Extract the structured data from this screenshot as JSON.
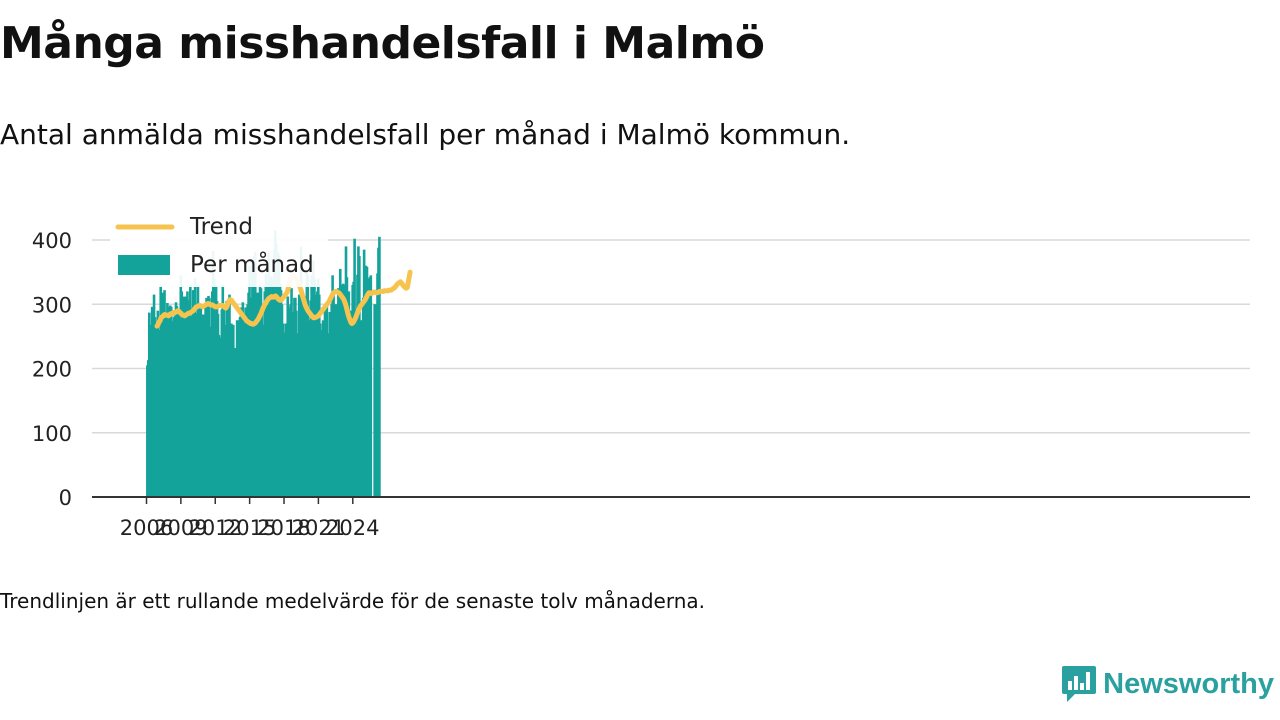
{
  "title": "Många misshandelsfall i Malmö",
  "subtitle": "Antal anmälda misshandelsfall per månad i Malmö kommun.",
  "footnote": "Trendlinjen är ett rullande medelvärde för de senaste tolv månaderna.",
  "brand": {
    "name": "Newsworthy",
    "icon": "newsworthy-logo-icon"
  },
  "colors": {
    "bar": "#14a39a",
    "trend": "#f7c34f",
    "grid": "#d9d9d9",
    "axis": "#333333",
    "brand": "#2aa0a0"
  },
  "chart_data": {
    "type": "bar",
    "x_unit": "month",
    "x_start": "2006-01",
    "x_ticks": [
      "2006",
      "2009",
      "2012",
      "2015",
      "2018",
      "2021",
      "2024"
    ],
    "y_ticks": [
      "0",
      "100",
      "200",
      "300",
      "400"
    ],
    "ylim": [
      0,
      420
    ],
    "grid": true,
    "legend_position": "top-left",
    "series": [
      {
        "name": "Per månad",
        "type": "bar",
        "values": [
          205,
          213,
          287,
          245,
          268,
          296,
          240,
          315,
          280,
          271,
          257,
          290,
          260,
          258,
          330,
          290,
          318,
          225,
          322,
          252,
          280,
          302,
          296,
          248,
          298,
          296,
          274,
          251,
          280,
          283,
          303,
          297,
          280,
          290,
          227,
          345,
          320,
          278,
          312,
          298,
          312,
          276,
          320,
          306,
          300,
          330,
          262,
          282,
          322,
          300,
          341,
          286,
          285,
          330,
          298,
          297,
          297,
          284,
          284,
          284,
          284,
          299,
          310,
          288,
          313,
          310,
          265,
          248,
          320,
          383,
          340,
          328,
          330,
          305,
          285,
          252,
          248,
          238,
          292,
          330,
          300,
          268,
          237,
          305,
          299,
          290,
          315,
          270,
          270,
          260,
          268,
          226,
          232,
          230,
          275,
          275,
          268,
          280,
          295,
          285,
          303,
          280,
          275,
          295,
          295,
          300,
          318,
          360,
          310,
          288,
          366,
          295,
          375,
          382,
          310,
          318,
          318,
          238,
          330,
          325,
          300,
          268,
          245,
          320,
          348,
          338,
          330,
          380,
          340,
          318,
          344,
          338,
          320,
          384,
          415,
          395,
          248,
          380,
          375,
          332,
          322,
          300,
          270,
          256,
          248,
          270,
          262,
          312,
          295,
          290,
          300,
          325,
          255,
          288,
          310,
          310,
          290,
          255,
          205,
          315,
          310,
          390,
          300,
          315,
          304,
          268,
          312,
          350,
          345,
          272,
          275,
          306,
          345,
          300,
          368,
          340,
          310,
          315,
          320,
          340,
          315,
          270,
          255,
          260,
          275,
          225,
          300,
          270,
          300,
          255,
          248,
          288,
          272,
          300,
          345,
          315,
          275,
          300,
          300,
          270,
          325,
          300,
          355,
          280,
          330,
          332,
          330,
          258,
          390,
          342,
          310,
          320,
          290,
          245,
          290,
          330,
          335,
          402,
          282,
          270,
          346,
          390,
          375,
          275,
          275,
          260,
          310,
          385,
          330,
          360,
          358,
          0,
          340,
          342,
          345,
          0,
          0,
          0,
          300,
          300,
          0,
          348,
          388,
          405
        ]
      },
      {
        "name": "Trend",
        "type": "line",
        "start_month": "2006-12",
        "values": [
          266,
          268,
          272,
          274,
          278,
          280,
          281,
          283,
          284,
          283,
          283,
          283,
          282,
          283,
          285,
          285,
          286,
          287,
          286,
          288,
          288,
          289,
          290,
          289,
          287,
          286,
          284,
          283,
          283,
          282,
          283,
          284,
          285,
          286,
          286,
          287,
          288,
          289,
          290,
          292,
          294,
          296,
          296,
          297,
          298,
          298,
          297,
          297,
          296,
          297,
          298,
          299,
          300,
          301,
          301,
          300,
          299,
          299,
          299,
          298,
          297,
          296,
          296,
          296,
          297,
          298,
          298,
          298,
          298,
          298,
          297,
          295,
          294,
          296,
          300,
          304,
          307,
          307,
          306,
          304,
          302,
          300,
          298,
          296,
          294,
          292,
          290,
          288,
          286,
          284,
          282,
          280,
          278,
          276,
          274,
          273,
          272,
          271,
          270,
          270,
          269,
          269,
          270,
          271,
          273,
          275,
          277,
          280,
          283,
          286,
          290,
          294,
          297,
          300,
          302,
          305,
          307,
          309,
          310,
          311,
          312,
          311,
          311,
          312,
          313,
          312,
          310,
          308,
          307,
          306,
          307,
          308,
          310,
          312,
          314,
          316,
          318,
          322,
          328,
          334,
          340,
          343,
          344,
          344,
          343,
          342,
          340,
          337,
          334,
          330,
          326,
          321,
          315,
          310,
          305,
          300,
          296,
          293,
          290,
          288,
          286,
          284,
          282,
          280,
          279,
          279,
          280,
          280,
          281,
          282,
          284,
          286,
          288,
          290,
          292,
          294,
          296,
          298,
          300,
          302,
          304,
          307,
          310,
          313,
          316,
          318,
          319,
          320,
          320,
          319,
          318,
          317,
          315,
          313,
          311,
          309,
          306,
          302,
          297,
          291,
          285,
          280,
          276,
          272,
          270,
          271,
          273,
          276,
          279,
          283,
          287,
          291,
          294,
          297,
          299,
          301,
          303,
          305,
          307,
          310,
          313,
          316,
          318,
          318,
          317,
          317,
          318,
          319,
          319,
          318,
          318,
          318,
          319,
          320,
          320,
          320,
          320,
          320,
          321,
          321,
          321,
          321,
          321,
          322,
          322,
          322,
          323,
          324,
          325,
          326,
          328,
          330,
          332,
          333,
          334,
          335,
          333,
          331,
          329,
          327,
          326,
          325,
          326,
          333,
          342,
          350
        ]
      }
    ]
  }
}
